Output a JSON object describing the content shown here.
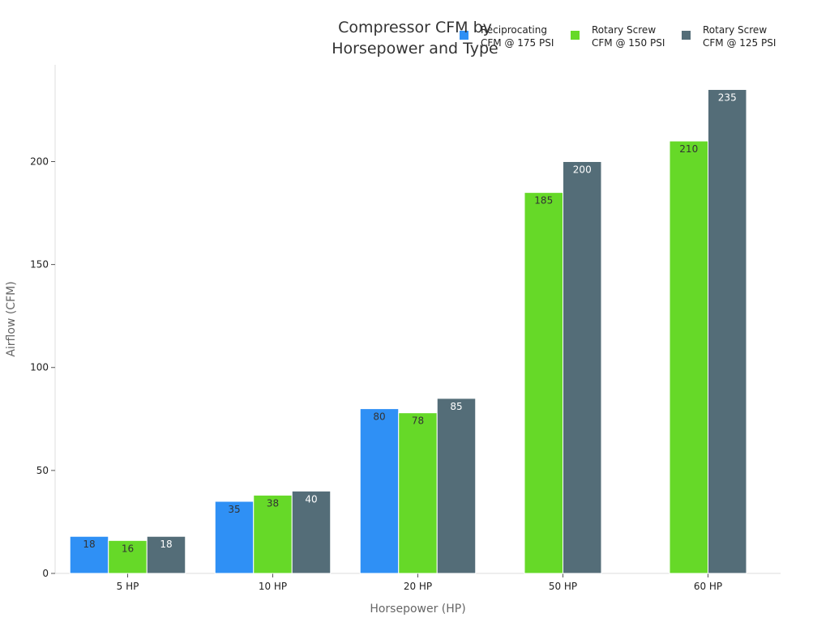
{
  "chart_data": {
    "type": "bar",
    "title": [
      "Compressor CFM by",
      "Horsepower and Type"
    ],
    "xlabel": "Horsepower (HP)",
    "ylabel": "Airflow (CFM)",
    "categories": [
      "5 HP",
      "10 HP",
      "20 HP",
      "50 HP",
      "60 HP"
    ],
    "ylim": [
      0,
      247
    ],
    "yticks": [
      0,
      50,
      100,
      150,
      200
    ],
    "grid": false,
    "legend_position": "top-right",
    "series": [
      {
        "name_lines": [
          "Reciprocating",
          "CFM @ 175 PSI"
        ],
        "color": "#2f90f5",
        "label_color": "#333333",
        "values": [
          18,
          35,
          80,
          null,
          null
        ]
      },
      {
        "name_lines": [
          "Rotary Screw",
          "CFM @ 150 PSI"
        ],
        "color": "#66d928",
        "label_color": "#333333",
        "values": [
          16,
          38,
          78,
          185,
          210
        ]
      },
      {
        "name_lines": [
          "Rotary Screw",
          "CFM @ 125 PSI"
        ],
        "color": "#546d78",
        "label_color": "#ffffff",
        "values": [
          18,
          40,
          85,
          200,
          235
        ]
      }
    ]
  }
}
